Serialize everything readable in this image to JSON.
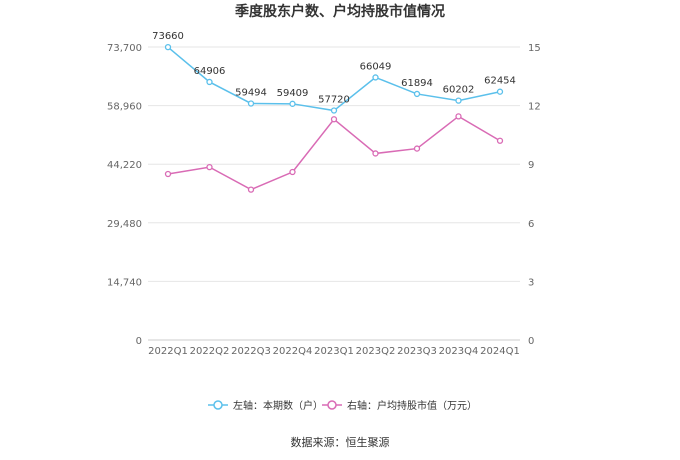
{
  "chart_data": {
    "type": "line",
    "title": "季度股东户数、户均持股市值情况",
    "categories": [
      "2022Q1",
      "2022Q2",
      "2022Q3",
      "2022Q4",
      "2023Q1",
      "2023Q2",
      "2023Q3",
      "2023Q4",
      "2024Q1"
    ],
    "series": [
      {
        "name": "左轴：本期数（户）",
        "axis": "left",
        "color": "#5bc0eb",
        "values": [
          73660,
          64906,
          59494,
          59409,
          57720,
          66049,
          61894,
          60202,
          62454
        ],
        "labels": [
          "73660",
          "64906",
          "59494",
          "59409",
          "57720",
          "66049",
          "61894",
          "60202",
          "62454"
        ]
      },
      {
        "name": "右轴：户均持股市值（万元）",
        "axis": "right",
        "color": "#d96bb5",
        "values": [
          8.5,
          8.85,
          7.7,
          8.6,
          11.3,
          9.55,
          9.8,
          11.45,
          10.2
        ]
      }
    ],
    "left_axis": {
      "ticks": [
        "0",
        "14,740",
        "29,480",
        "44,220",
        "58,960",
        "73,700"
      ],
      "range": [
        0,
        73700
      ]
    },
    "right_axis": {
      "ticks": [
        "0",
        "3",
        "6",
        "9",
        "12",
        "15"
      ],
      "range": [
        0,
        15
      ]
    },
    "grid": true,
    "legend_position": "bottom"
  },
  "source": "数据来源：恒生聚源"
}
